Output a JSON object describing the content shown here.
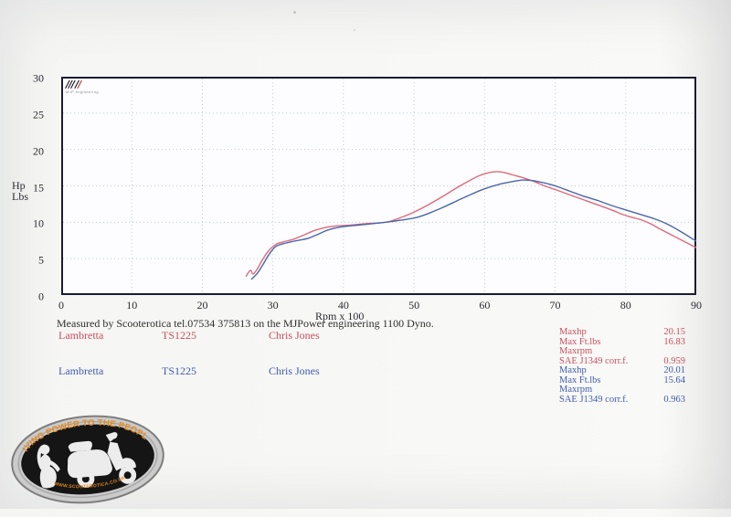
{
  "page": {
    "caption": "Measured by Scooterotica tel.07534 375813 on the MJPower engineering 1100 Dyno."
  },
  "logo": {
    "slashes": "///",
    "slashes2": "/",
    "slashes_red": "/",
    "subtext": "MJP engineering"
  },
  "axes": {
    "y_title_line1": "Hp",
    "y_title_line2": "Lbs",
    "x_title": "Rpm x 100"
  },
  "chart_data": {
    "type": "line",
    "title": "",
    "xlabel": "Rpm x 100",
    "ylabel": "Hp / Lbs",
    "xlim": [
      0,
      90
    ],
    "ylim": [
      0,
      30
    ],
    "x_ticks": [
      0,
      10,
      20,
      30,
      40,
      50,
      60,
      70,
      80,
      90
    ],
    "y_ticks": [
      0,
      5,
      10,
      15,
      20,
      25,
      30
    ],
    "grid": true,
    "grid_color": "#bdc9e0",
    "frame_color": "#1b1b33",
    "plot_bg": "#fdfdff",
    "series": [
      {
        "id": "dyno-curve-red",
        "name": "Lambretta TS1225 - Chris Jones (red run)",
        "color": "#e0697a",
        "points": [
          [
            26.2,
            2.6
          ],
          [
            26.8,
            3.4
          ],
          [
            27.2,
            2.9
          ],
          [
            27.8,
            3.6
          ],
          [
            28.6,
            5.0
          ],
          [
            29.5,
            6.2
          ],
          [
            30.5,
            7.0
          ],
          [
            31.5,
            7.3
          ],
          [
            33,
            7.7
          ],
          [
            34.5,
            8.3
          ],
          [
            36,
            8.9
          ],
          [
            37.5,
            9.3
          ],
          [
            39,
            9.5
          ],
          [
            41,
            9.6
          ],
          [
            43,
            9.8
          ],
          [
            45,
            9.9
          ],
          [
            46.5,
            10.1
          ],
          [
            48,
            10.6
          ],
          [
            50,
            11.4
          ],
          [
            52,
            12.4
          ],
          [
            54,
            13.5
          ],
          [
            56,
            14.7
          ],
          [
            58,
            15.8
          ],
          [
            59.5,
            16.5
          ],
          [
            61,
            16.9
          ],
          [
            62.5,
            16.9
          ],
          [
            64,
            16.5
          ],
          [
            65.5,
            16.1
          ],
          [
            67,
            15.6
          ],
          [
            68.5,
            15.0
          ],
          [
            70,
            14.5
          ],
          [
            72,
            13.8
          ],
          [
            74,
            13.1
          ],
          [
            76,
            12.4
          ],
          [
            78,
            11.7
          ],
          [
            79.5,
            11.1
          ],
          [
            80.8,
            10.7
          ],
          [
            82,
            10.4
          ],
          [
            83.5,
            9.8
          ],
          [
            85,
            9.0
          ],
          [
            87,
            8.0
          ],
          [
            89,
            7.0
          ],
          [
            90,
            6.5
          ]
        ]
      },
      {
        "id": "dyno-curve-blue",
        "name": "Lambretta TS1225 - Chris Jones (blue run)",
        "color": "#4a66ac",
        "points": [
          [
            27.0,
            2.2
          ],
          [
            27.8,
            3.0
          ],
          [
            28.6,
            4.2
          ],
          [
            29.4,
            5.5
          ],
          [
            30.3,
            6.6
          ],
          [
            31.3,
            7.0
          ],
          [
            33,
            7.4
          ],
          [
            35,
            7.8
          ],
          [
            36.5,
            8.4
          ],
          [
            38,
            9.0
          ],
          [
            40,
            9.4
          ],
          [
            42,
            9.6
          ],
          [
            44,
            9.8
          ],
          [
            46,
            10.0
          ],
          [
            47.5,
            10.2
          ],
          [
            49,
            10.4
          ],
          [
            50.5,
            10.7
          ],
          [
            52,
            11.2
          ],
          [
            54,
            12.0
          ],
          [
            56,
            12.9
          ],
          [
            58,
            13.8
          ],
          [
            60,
            14.6
          ],
          [
            62,
            15.2
          ],
          [
            64,
            15.6
          ],
          [
            65.5,
            15.8
          ],
          [
            67,
            15.7
          ],
          [
            68.5,
            15.4
          ],
          [
            70,
            15.0
          ],
          [
            72,
            14.3
          ],
          [
            74,
            13.6
          ],
          [
            76,
            13.0
          ],
          [
            78,
            12.3
          ],
          [
            80,
            11.7
          ],
          [
            82,
            11.1
          ],
          [
            84,
            10.5
          ],
          [
            86,
            9.7
          ],
          [
            88,
            8.6
          ],
          [
            89.5,
            7.7
          ],
          [
            90,
            7.4
          ]
        ]
      }
    ]
  },
  "runs": [
    {
      "make": "Lambretta",
      "model": "TS1225",
      "rider": "Chris Jones",
      "color": "#c8505f",
      "stats": [
        {
          "label": "Maxhp",
          "value": "20.15"
        },
        {
          "label": "Max Ft.lbs",
          "value": "16.83"
        },
        {
          "label": "Maxrpm",
          "value": ""
        },
        {
          "label": "SAE J1349 corr.f.",
          "value": "0.959"
        }
      ]
    },
    {
      "make": "Lambretta",
      "model": "TS1225",
      "rider": "Chris Jones",
      "color": "#3f5db2",
      "stats": [
        {
          "label": "Maxhp",
          "value": "20.01"
        },
        {
          "label": "Max Ft.lbs",
          "value": "15.64"
        },
        {
          "label": "Maxrpm",
          "value": ""
        },
        {
          "label": "SAE J1349 corr.f.",
          "value": "0.963"
        }
      ]
    }
  ],
  "badge": {
    "top_text": "GIVING POWER TO THE PEOPLE!",
    "bottom_text": "WWW.SCOOTEROTICA.CO.UK",
    "accent": "#e58a1f"
  }
}
